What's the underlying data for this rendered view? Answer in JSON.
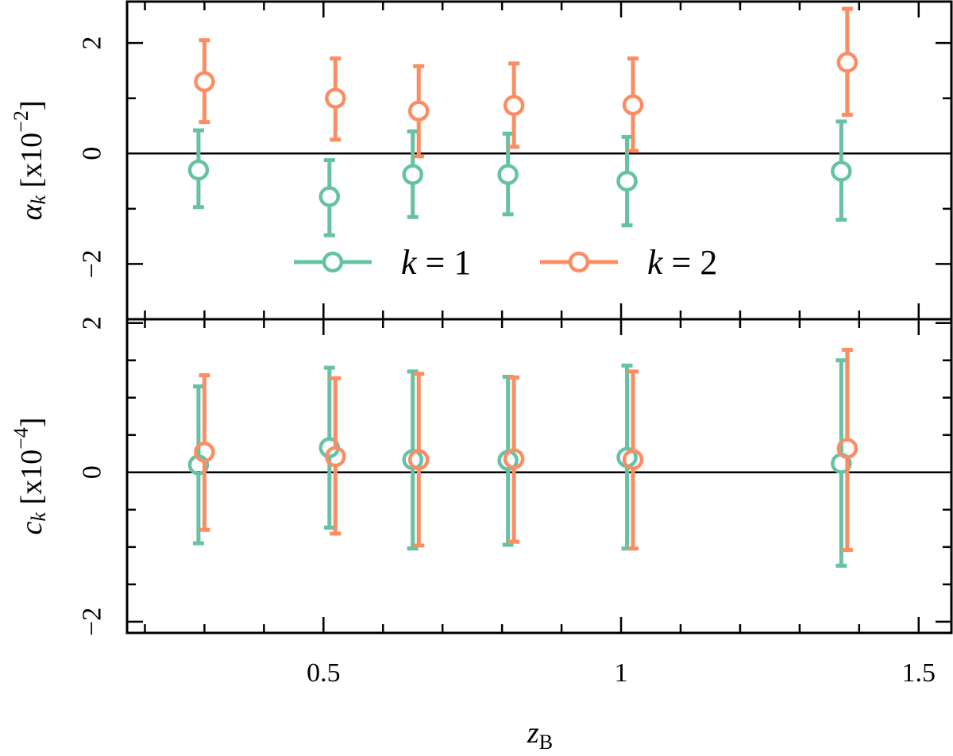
{
  "chart_data": {
    "type": "scatter",
    "x_axis": {
      "label": "z",
      "label_sub": "B",
      "range": [
        0.17,
        1.555
      ],
      "major_ticks": [
        0.5,
        1,
        1.5
      ],
      "major_tick_labels": [
        "0.5",
        "1",
        "1.5"
      ],
      "minor_ticks": [
        0.2,
        0.3,
        0.4,
        0.6,
        0.7,
        0.8,
        0.9,
        1.1,
        1.2,
        1.3,
        1.4
      ]
    },
    "legend": {
      "placement": "bottom-center of top panel",
      "entries": [
        {
          "series": "k1",
          "var": "k",
          "eq": " = 1"
        },
        {
          "series": "k2",
          "var": "k",
          "eq": " = 2"
        }
      ]
    },
    "colors": {
      "k1": "#66c2a5",
      "k2": "#fc8d62",
      "axis": "#000000"
    },
    "panels": [
      {
        "id": "alpha",
        "ylabel_symbol": "α",
        "ylabel_sub": "k",
        "ylabel_unit": " [x10",
        "ylabel_exp": "−2",
        "ylabel_close": "]",
        "ylim": [
          -3,
          2.75
        ],
        "yticks": [
          -2,
          0,
          2
        ],
        "ytick_labels": [
          "−2",
          "0",
          "2"
        ],
        "minor_yticks": [
          -1,
          1
        ],
        "zero_line": true,
        "series": [
          {
            "key": "k1",
            "x": [
              0.29,
              0.51,
              0.65,
              0.81,
              1.01,
              1.37
            ],
            "y": [
              -0.3,
              -0.78,
              -0.38,
              -0.38,
              -0.5,
              -0.32
            ],
            "ylow": [
              -0.97,
              -1.48,
              -1.15,
              -1.1,
              -1.3,
              -1.2
            ],
            "yhigh": [
              0.42,
              -0.12,
              0.4,
              0.36,
              0.3,
              0.58
            ]
          },
          {
            "key": "k2",
            "x": [
              0.3,
              0.52,
              0.66,
              0.82,
              1.02,
              1.38
            ],
            "y": [
              1.3,
              1.0,
              0.77,
              0.87,
              0.88,
              1.65
            ],
            "ylow": [
              0.57,
              0.25,
              -0.05,
              0.12,
              0.05,
              0.7
            ],
            "yhigh": [
              2.05,
              1.72,
              1.58,
              1.63,
              1.72,
              2.62
            ]
          }
        ]
      },
      {
        "id": "c",
        "ylabel_symbol": "c",
        "ylabel_sub": "k",
        "ylabel_unit": " [x10",
        "ylabel_exp": "−4",
        "ylabel_close": "]",
        "ylim": [
          -2.15,
          2.05
        ],
        "yticks": [
          -2,
          0,
          2
        ],
        "ytick_labels": [
          "−2",
          "0",
          "2"
        ],
        "minor_yticks": [
          -1.5,
          -1,
          -0.5,
          0.5,
          1,
          1.5
        ],
        "zero_line": true,
        "series": [
          {
            "key": "k1",
            "x": [
              0.29,
              0.51,
              0.65,
              0.81,
              1.01,
              1.37
            ],
            "y": [
              0.1,
              0.33,
              0.17,
              0.16,
              0.2,
              0.12
            ],
            "ylow": [
              -0.95,
              -0.74,
              -1.02,
              -0.97,
              -1.02,
              -1.25
            ],
            "yhigh": [
              1.15,
              1.4,
              1.35,
              1.28,
              1.43,
              1.5
            ]
          },
          {
            "key": "k2",
            "x": [
              0.3,
              0.52,
              0.66,
              0.82,
              1.02,
              1.38
            ],
            "y": [
              0.27,
              0.21,
              0.17,
              0.18,
              0.17,
              0.32
            ],
            "ylow": [
              -0.77,
              -0.82,
              -0.98,
              -0.93,
              -1.02,
              -1.04
            ],
            "yhigh": [
              1.3,
              1.26,
              1.32,
              1.27,
              1.35,
              1.64
            ]
          }
        ]
      }
    ]
  }
}
